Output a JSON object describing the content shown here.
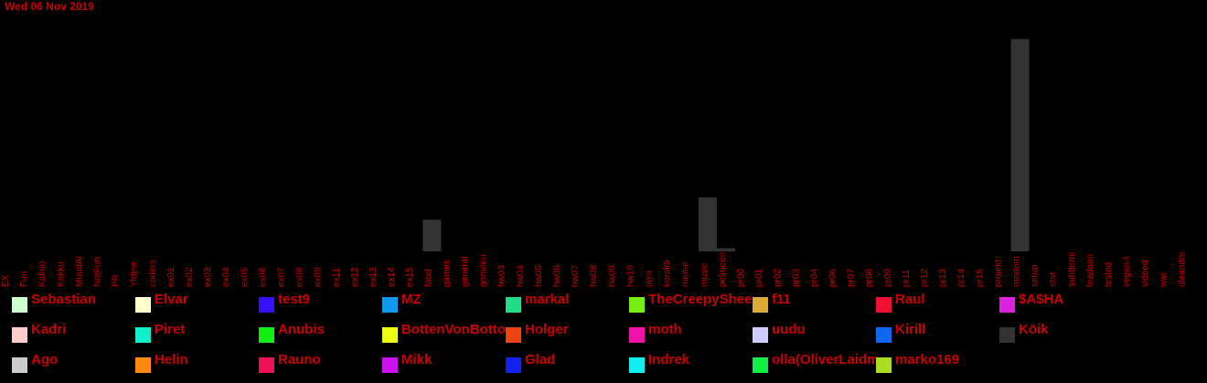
{
  "date": "Wed 06 Nov 2019",
  "chart_data": {
    "type": "bar",
    "categories": [
      "EX",
      "Fun",
      "Kalmo",
      "Kokku",
      "MuudAi",
      "NotFun",
      "PR",
      "Yldine",
      "coders",
      "ex01",
      "ex02",
      "ex03",
      "ex04",
      "ex05",
      "ex06",
      "ex07",
      "ex08",
      "ex09",
      "ex11",
      "ex12",
      "ex13",
      "ex14",
      "ex15",
      "food",
      "games",
      "general",
      "gomoku",
      "hw03",
      "hw04",
      "hw05",
      "hw06",
      "hw07",
      "hw08",
      "hw09",
      "hw10",
      "java",
      "koraldi",
      "meme",
      "music",
      "pelmeen",
      "pr00",
      "pr01",
      "pr02",
      "pr03",
      "pr04",
      "pr06",
      "pr07",
      "pr08",
      "pr09",
      "pr11",
      "pr12",
      "pr13",
      "pr14",
      "pr15",
      "projekt",
      "random",
      "setup",
      "stat",
      "suhtlemi",
      "teadaan",
      "tested",
      "vegan-t",
      "videod",
      "wat",
      "üleandm"
    ],
    "series": [
      {
        "name": "Köik",
        "color": "#333333",
        "values": [
          0,
          0,
          0,
          0,
          0,
          0,
          0,
          0,
          0,
          0,
          0,
          0,
          0,
          0,
          0,
          0,
          0,
          0,
          0,
          0,
          0,
          0,
          0,
          10,
          0,
          0,
          0,
          0,
          0,
          0,
          0,
          0,
          0,
          0,
          0,
          0,
          0,
          0,
          17,
          1,
          0,
          0,
          0,
          0,
          0,
          0,
          0,
          0,
          0,
          0,
          0,
          0,
          0,
          0,
          0,
          67,
          0,
          0,
          0,
          0,
          0,
          0,
          0,
          0,
          0
        ]
      }
    ],
    "ylim": [
      0,
      75
    ],
    "legend": [
      {
        "name": "Sebastian",
        "color": "#ccffcc"
      },
      {
        "name": "Elvar",
        "color": "#ffffcc"
      },
      {
        "name": "test9",
        "color": "#3311ff"
      },
      {
        "name": "MZ",
        "color": "#1199ee"
      },
      {
        "name": "markal",
        "color": "#22dd88"
      },
      {
        "name": "TheCreepySheep",
        "color": "#77ee11"
      },
      {
        "name": "f11",
        "color": "#ddaa33"
      },
      {
        "name": "Raul",
        "color": "#ee1133"
      },
      {
        "name": "$A$HA",
        "color": "#dd22dd"
      },
      {
        "name": "Kadri",
        "color": "#ffcccc"
      },
      {
        "name": "Piret",
        "color": "#11eecc"
      },
      {
        "name": "Anubis",
        "color": "#11ee11"
      },
      {
        "name": "BottenVonBottom",
        "color": "#eeff11"
      },
      {
        "name": "Holger",
        "color": "#ee4411"
      },
      {
        "name": "moth",
        "color": "#ee11aa"
      },
      {
        "name": "uudu",
        "color": "#ccccff"
      },
      {
        "name": "Kirill",
        "color": "#1166ee"
      },
      {
        "name": "Köik",
        "color": "#333333"
      },
      {
        "name": "Ago",
        "color": "#cccccc"
      },
      {
        "name": "Helin",
        "color": "#ff8811"
      },
      {
        "name": "Rauno",
        "color": "#ee1155"
      },
      {
        "name": "Mikk",
        "color": "#cc11ee"
      },
      {
        "name": "Glad",
        "color": "#1122ee"
      },
      {
        "name": "Indrek",
        "color": "#11eeee"
      },
      {
        "name": "olla(OliverLaidma)",
        "color": "#11ee44"
      },
      {
        "name": "marko169",
        "color": "#aadd22"
      }
    ],
    "text_color": "#cc0000"
  }
}
